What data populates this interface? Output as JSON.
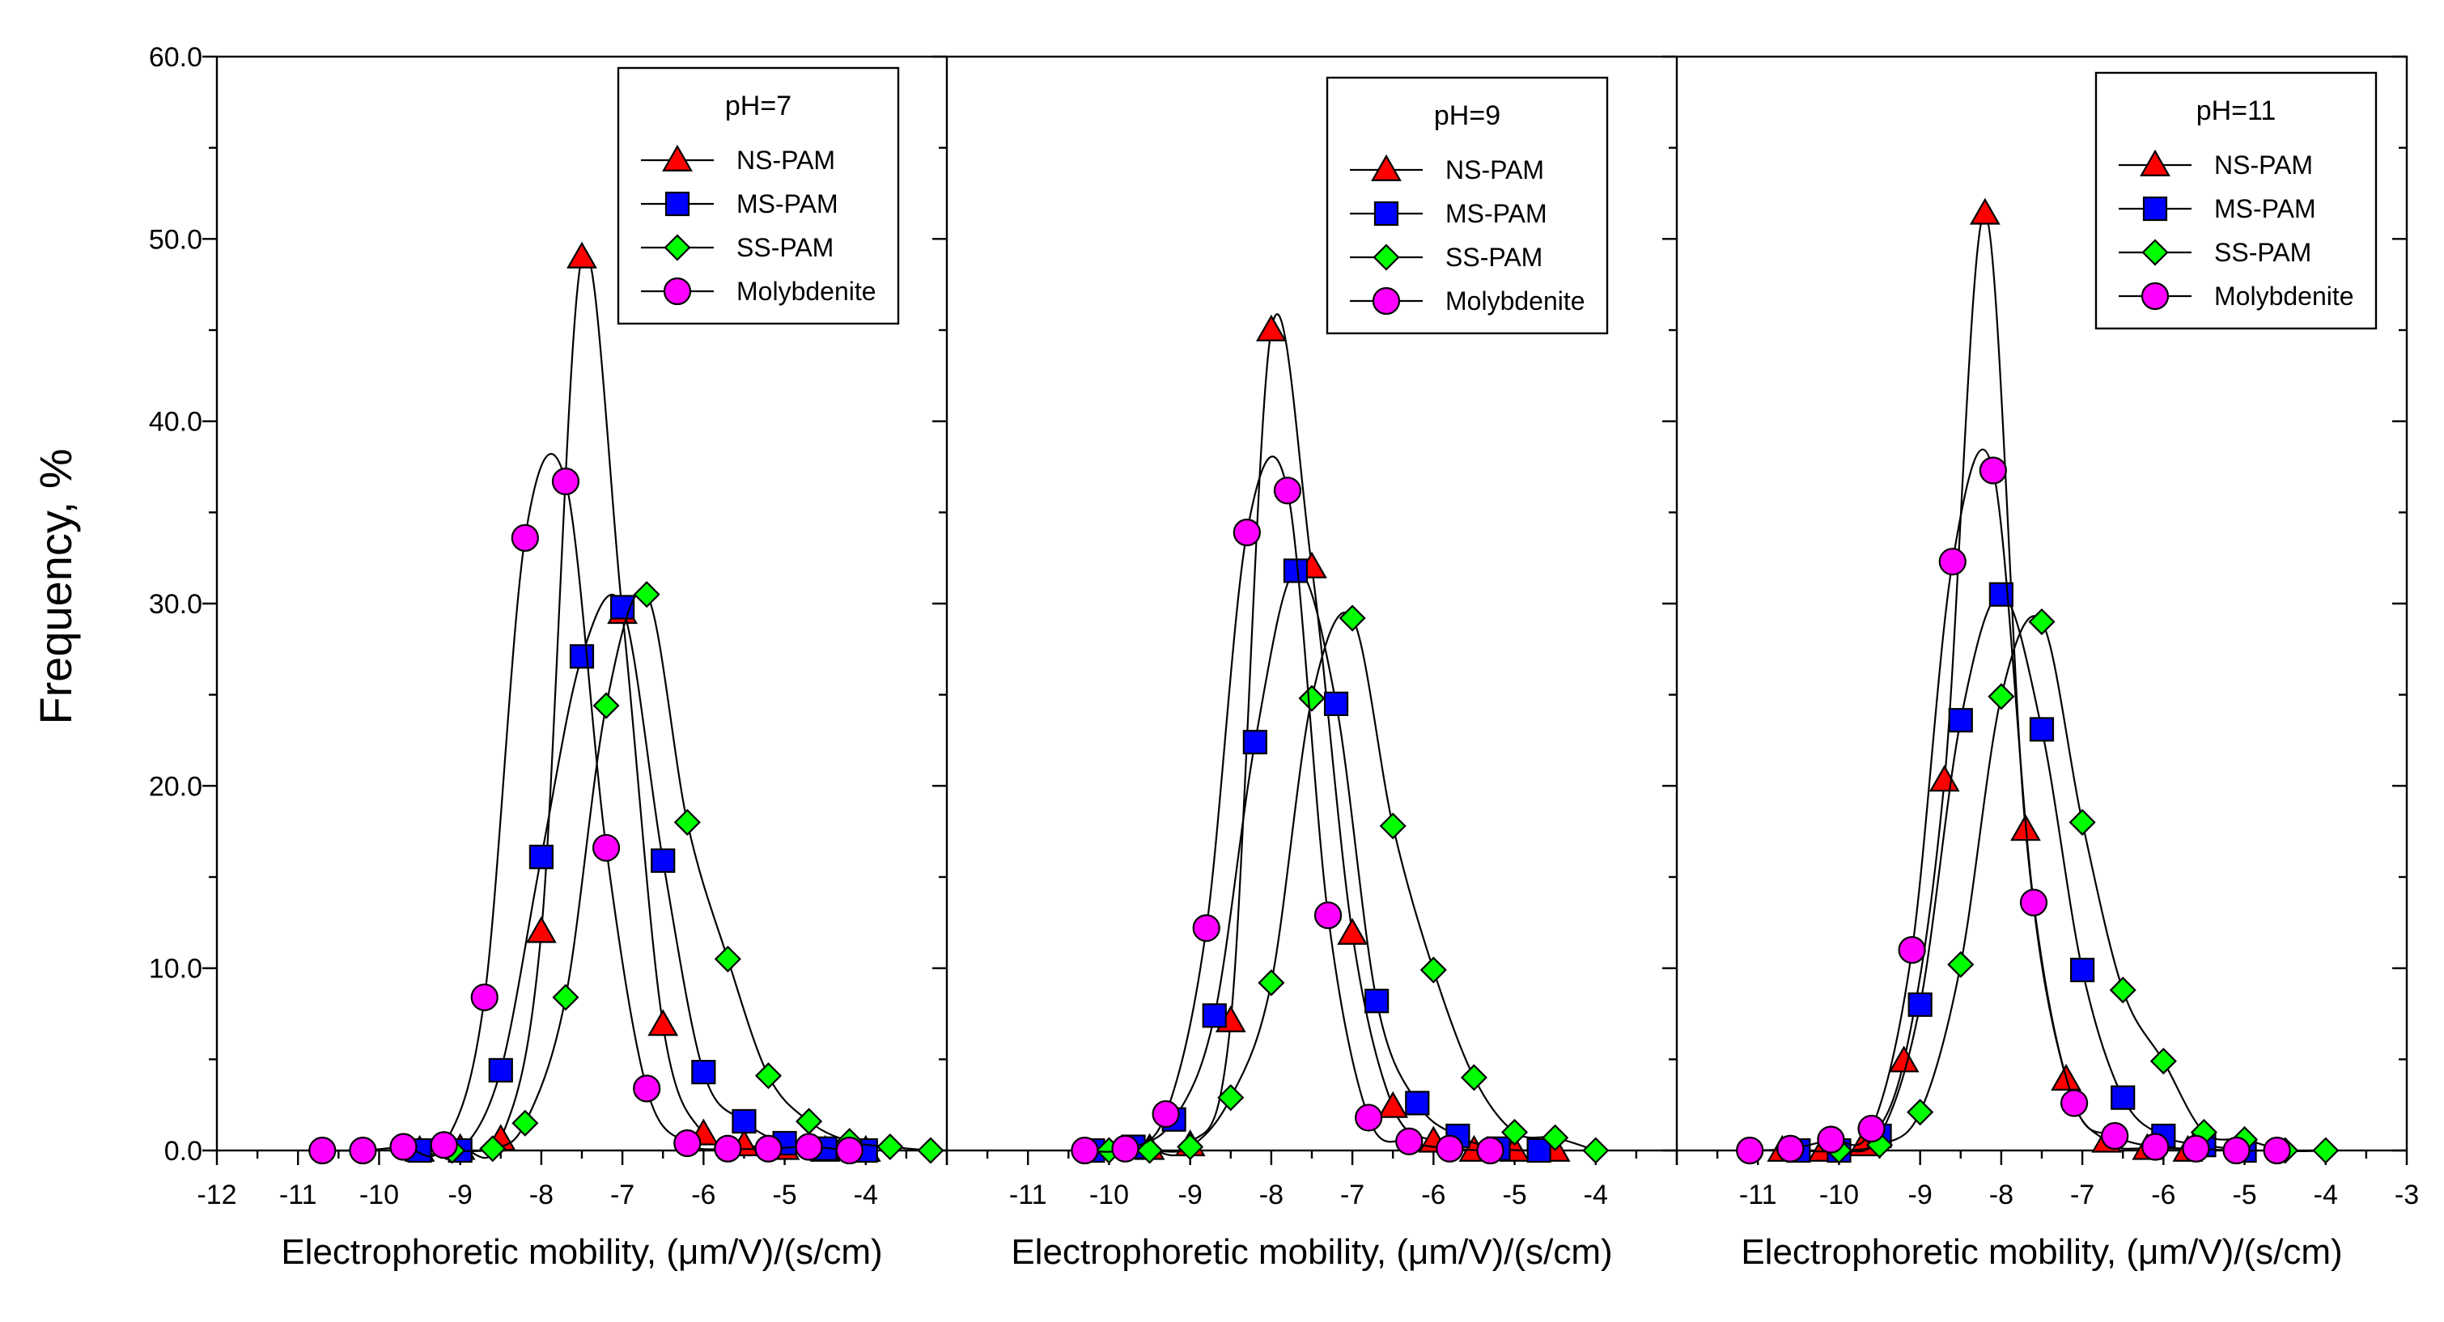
{
  "chart_data": {
    "type": "line",
    "ylabel": "Frequency, %",
    "yticks": [
      "0.0",
      "10.0",
      "20.0",
      "30.0",
      "40.0",
      "50.0",
      "60.0"
    ],
    "ylim": [
      0,
      60
    ],
    "colors": {
      "NS-PAM": "#ff0000",
      "MS-PAM": "#0000ff",
      "SS-PAM": "#00ff00",
      "Molybdenite": "#ff00ff"
    },
    "markers": {
      "NS-PAM": "triangle",
      "MS-PAM": "square",
      "SS-PAM": "diamond",
      "Molybdenite": "circle"
    },
    "panels": [
      {
        "title": "pH=7",
        "xlabel": "Electrophoretic mobility, (μm/V)/(s/cm)",
        "xlim": [
          -12,
          -3
        ],
        "xticks": [
          "-12",
          "-11",
          "-10",
          "-9",
          "-8",
          "-7",
          "-6",
          "-5",
          "-4"
        ],
        "series": [
          {
            "name": "NS-PAM",
            "x": [
              -9.5,
              -9.0,
              -8.5,
              -8.0,
              -7.5,
              -7.0,
              -6.5,
              -6.0,
              -5.5,
              -5.0,
              -4.5,
              -4.0
            ],
            "y": [
              0.0,
              0.1,
              0.6,
              12.0,
              49.0,
              29.5,
              6.9,
              0.9,
              0.3,
              0.1,
              0.0,
              0.0
            ]
          },
          {
            "name": "MS-PAM",
            "x": [
              -9.5,
              -9.0,
              -8.5,
              -8.0,
              -7.5,
              -7.0,
              -6.5,
              -6.0,
              -5.5,
              -5.0,
              -4.5,
              -4.0
            ],
            "y": [
              0.0,
              0.0,
              4.4,
              16.1,
              27.1,
              29.8,
              15.9,
              4.3,
              1.6,
              0.4,
              0.1,
              0.0
            ]
          },
          {
            "name": "SS-PAM",
            "x": [
              -9.1,
              -8.6,
              -8.2,
              -7.7,
              -7.2,
              -6.7,
              -6.2,
              -5.7,
              -5.2,
              -4.7,
              -4.2,
              -3.7,
              -3.2
            ],
            "y": [
              0.0,
              0.1,
              1.5,
              8.4,
              24.4,
              30.5,
              18.0,
              10.5,
              4.1,
              1.6,
              0.5,
              0.2,
              0.0
            ]
          },
          {
            "name": "Molybdenite",
            "x": [
              -10.7,
              -10.2,
              -9.7,
              -9.2,
              -8.7,
              -8.2,
              -7.7,
              -7.2,
              -6.7,
              -6.2,
              -5.7,
              -5.2,
              -4.7,
              -4.2
            ],
            "y": [
              0.0,
              0.0,
              0.2,
              0.3,
              8.4,
              33.6,
              36.7,
              16.6,
              3.4,
              0.4,
              0.1,
              0.1,
              0.2,
              0.0
            ]
          }
        ]
      },
      {
        "title": "pH=9",
        "xlabel": "Electrophoretic mobility, (μm/V)/(s/cm)",
        "xlim": [
          -12,
          -3
        ],
        "xticks": [
          "-11",
          "-10",
          "-9",
          "-8",
          "-7",
          "-6",
          "-5",
          "-4"
        ],
        "series": [
          {
            "name": "NS-PAM",
            "x": [
              -9.5,
              -9.0,
              -8.5,
              -8.0,
              -7.5,
              -7.0,
              -6.5,
              -6.0,
              -5.5,
              -5.0,
              -4.5
            ],
            "y": [
              0.1,
              0.3,
              7.1,
              45.0,
              32.0,
              11.9,
              2.4,
              0.5,
              0.0,
              0.0,
              0.0
            ]
          },
          {
            "name": "MS-PAM",
            "x": [
              -10.2,
              -9.7,
              -9.2,
              -8.7,
              -8.2,
              -7.7,
              -7.2,
              -6.7,
              -6.2,
              -5.7,
              -5.2,
              -4.7
            ],
            "y": [
              0.0,
              0.2,
              1.7,
              7.4,
              22.4,
              31.8,
              24.5,
              8.2,
              2.6,
              0.8,
              0.1,
              0.0
            ]
          },
          {
            "name": "SS-PAM",
            "x": [
              -10.0,
              -9.5,
              -9.0,
              -8.5,
              -8.0,
              -7.5,
              -7.0,
              -6.5,
              -6.0,
              -5.5,
              -5.0,
              -4.5,
              -4.0
            ],
            "y": [
              0.0,
              0.0,
              0.2,
              2.9,
              9.2,
              24.8,
              29.2,
              17.8,
              9.9,
              4.0,
              1.0,
              0.7,
              0.0
            ]
          },
          {
            "name": "Molybdenite",
            "x": [
              -10.3,
              -9.8,
              -9.3,
              -8.8,
              -8.3,
              -7.8,
              -7.3,
              -6.8,
              -6.3,
              -5.8,
              -5.3
            ],
            "y": [
              0.0,
              0.1,
              2.0,
              12.2,
              33.9,
              36.2,
              12.9,
              1.8,
              0.5,
              0.1,
              0.0
            ]
          }
        ]
      },
      {
        "title": "pH=11",
        "xlabel": "Electrophoretic mobility, (μm/V)/(s/cm)",
        "xlim": [
          -12,
          -3
        ],
        "xticks": [
          "-11",
          "-10",
          "-9",
          "-8",
          "-7",
          "-6",
          "-5",
          "-4",
          "-3"
        ],
        "series": [
          {
            "name": "NS-PAM",
            "x": [
              -10.7,
              -10.2,
              -9.7,
              -9.2,
              -8.7,
              -8.2,
              -7.7,
              -7.2,
              -6.7,
              -6.2,
              -5.7
            ],
            "y": [
              0.0,
              0.0,
              0.3,
              4.9,
              20.3,
              51.4,
              17.6,
              3.9,
              0.5,
              0.1,
              0.0
            ]
          },
          {
            "name": "MS-PAM",
            "x": [
              -10.5,
              -10.0,
              -9.5,
              -9.0,
              -8.5,
              -8.0,
              -7.5,
              -7.0,
              -6.5,
              -6.0,
              -5.5,
              -5.0
            ],
            "y": [
              0.0,
              0.0,
              0.8,
              8.0,
              23.6,
              30.5,
              23.1,
              9.9,
              2.9,
              0.8,
              0.3,
              0.0
            ]
          },
          {
            "name": "SS-PAM",
            "x": [
              -10.0,
              -9.5,
              -9.0,
              -8.5,
              -8.0,
              -7.5,
              -7.0,
              -6.5,
              -6.0,
              -5.5,
              -5.0,
              -4.5,
              -4.0
            ],
            "y": [
              0.0,
              0.3,
              2.1,
              10.2,
              24.9,
              29.0,
              18.0,
              8.8,
              4.9,
              1.0,
              0.6,
              0.0,
              0.0
            ]
          },
          {
            "name": "Molybdenite",
            "x": [
              -11.1,
              -10.6,
              -10.1,
              -9.6,
              -9.1,
              -8.6,
              -8.1,
              -7.6,
              -7.1,
              -6.6,
              -6.1,
              -5.6,
              -5.1,
              -4.6
            ],
            "y": [
              0.0,
              0.1,
              0.6,
              1.2,
              11.0,
              32.3,
              37.3,
              13.6,
              2.6,
              0.8,
              0.2,
              0.1,
              0.0,
              0.0
            ]
          }
        ]
      }
    ]
  }
}
